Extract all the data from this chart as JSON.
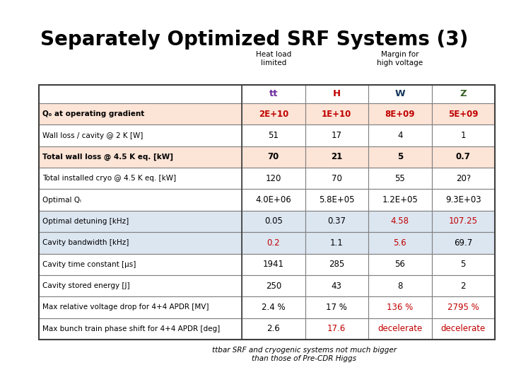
{
  "title": "Separately Optimized SRF Systems (3)",
  "header_label1": "Heat load\nlimited",
  "header_label2": "Margin for\nhigh voltage",
  "col_headers": [
    "tt",
    "H",
    "W",
    "Z"
  ],
  "col_header_colors": [
    "#7030a0",
    "#c00000",
    "#17375e",
    "#376023"
  ],
  "rows": [
    {
      "label": "Q₀ at operating gradient",
      "label_bold": true,
      "bg": "#fce4d6",
      "values": [
        "2E+10",
        "1E+10",
        "8E+09",
        "5E+09"
      ],
      "value_colors": [
        "#c00000",
        "#c00000",
        "#c00000",
        "#c00000"
      ],
      "value_bold": true
    },
    {
      "label": "Wall loss / cavity @ 2 K [W]",
      "label_bold": false,
      "bg": "#ffffff",
      "values": [
        "51",
        "17",
        "4",
        "1"
      ],
      "value_colors": [
        "#000000",
        "#000000",
        "#000000",
        "#000000"
      ],
      "value_bold": false
    },
    {
      "label": "Total wall loss @ 4.5 K eq. [kW]",
      "label_bold": true,
      "bg": "#fce4d6",
      "values": [
        "70",
        "21",
        "5",
        "0.7"
      ],
      "value_colors": [
        "#000000",
        "#000000",
        "#000000",
        "#000000"
      ],
      "value_bold": true
    },
    {
      "label": "Total installed cryo @ 4.5 K eq. [kW]",
      "label_bold": false,
      "bg": "#ffffff",
      "values": [
        "120",
        "70",
        "55",
        "20?"
      ],
      "value_colors": [
        "#000000",
        "#000000",
        "#000000",
        "#000000"
      ],
      "value_bold": false
    },
    {
      "label": "Optimal Qₗ",
      "label_bold": false,
      "bg": "#ffffff",
      "values": [
        "4.0E+06",
        "5.8E+05",
        "1.2E+05",
        "9.3E+03"
      ],
      "value_colors": [
        "#000000",
        "#000000",
        "#000000",
        "#000000"
      ],
      "value_bold": false
    },
    {
      "label": "Optimal detuning [kHz]",
      "label_bold": false,
      "bg": "#dce6f1",
      "values": [
        "0.05",
        "0.37",
        "4.58",
        "107.25"
      ],
      "value_colors": [
        "#000000",
        "#000000",
        "#c00000",
        "#c00000"
      ],
      "value_bold": false
    },
    {
      "label": "Cavity bandwidth [kHz]",
      "label_bold": false,
      "bg": "#dce6f1",
      "values": [
        "0.2",
        "1.1",
        "5.6",
        "69.7"
      ],
      "value_colors": [
        "#c00000",
        "#000000",
        "#c00000",
        "#000000"
      ],
      "value_bold": false
    },
    {
      "label": "Cavity time constant [µs]",
      "label_bold": false,
      "bg": "#ffffff",
      "values": [
        "1941",
        "285",
        "56",
        "5"
      ],
      "value_colors": [
        "#000000",
        "#000000",
        "#000000",
        "#000000"
      ],
      "value_bold": false
    },
    {
      "label": "Cavity stored energy [J]",
      "label_bold": false,
      "bg": "#ffffff",
      "values": [
        "250",
        "43",
        "8",
        "2"
      ],
      "value_colors": [
        "#000000",
        "#000000",
        "#000000",
        "#000000"
      ],
      "value_bold": false
    },
    {
      "label": "Max relative voltage drop for 4+4 APDR [MV]",
      "label_bold": false,
      "bg": "#ffffff",
      "values": [
        "2.4 %",
        "17 %",
        "136 %",
        "2795 %"
      ],
      "value_colors": [
        "#000000",
        "#000000",
        "#c00000",
        "#c00000"
      ],
      "value_bold": false
    },
    {
      "label": "Max bunch train phase shift for 4+4 APDR [deg]",
      "label_bold": false,
      "bg": "#ffffff",
      "values": [
        "2.6",
        "17.6",
        "decelerate",
        "decelerate"
      ],
      "value_colors": [
        "#000000",
        "#c00000",
        "#c00000",
        "#c00000"
      ],
      "value_bold": false
    }
  ],
  "footnote": "ttbar SRF and cryogenic systems not much bigger\nthan those of Pre-CDR Higgs",
  "bg_color": "#ffffff",
  "title_fontsize": 20,
  "table_fontsize": 8.5,
  "header_fontsize": 9.5,
  "label_fontsize": 7.5,
  "above_label_fontsize": 7.5
}
